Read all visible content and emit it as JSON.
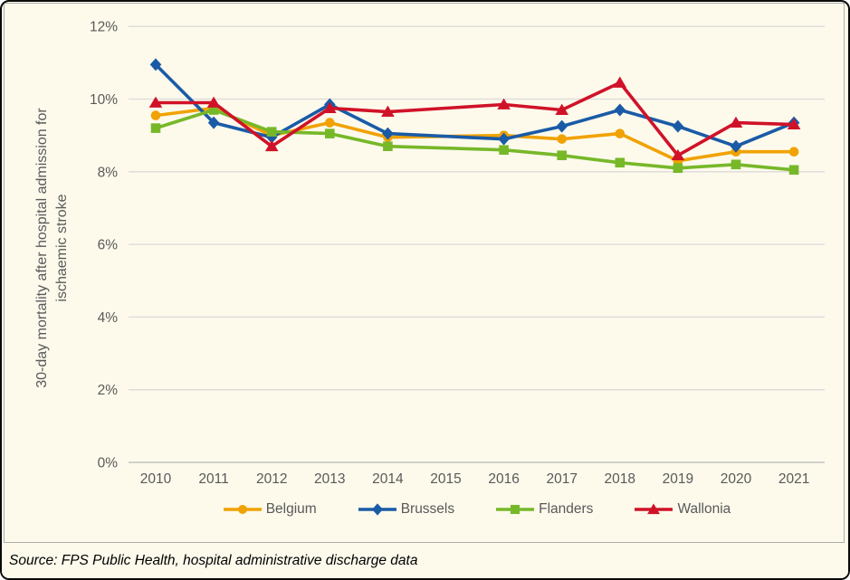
{
  "frame": {
    "background_color": "#FDFAEC",
    "outer_border_color": "#0A0A0A",
    "panel_border_color": "#ADADAD",
    "text_color": "#595959",
    "gridline_color": "#DADADA",
    "axis_line_color": "#B9B9B9"
  },
  "source": {
    "text": "Source: FPS Public Health, hospital administrative discharge data"
  },
  "chart_data": {
    "type": "line",
    "title": "",
    "ylabel": "30-day mortality after hospital admission for ischaemic stroke",
    "ylabel_line1": "30-day mortality after hospital admission for",
    "ylabel_line2": "ischaemic stroke",
    "xlabel": "",
    "categories": [
      "2010",
      "2011",
      "2012",
      "2013",
      "2014",
      "2015",
      "2016",
      "2017",
      "2018",
      "2019",
      "2020",
      "2021"
    ],
    "yticks": [
      0,
      2,
      4,
      6,
      8,
      10,
      12
    ],
    "ytick_labels": [
      "0%",
      "2%",
      "4%",
      "6%",
      "8%",
      "10%",
      "12%"
    ],
    "ylim": [
      0,
      12
    ],
    "grid": true,
    "legend_position": "bottom",
    "note": "No data markers shown for 2015; lines connect 2014 directly to 2016.",
    "series": [
      {
        "name": "Belgium",
        "color": "#F0A202",
        "marker": "circle",
        "values": [
          9.55,
          9.75,
          9.0,
          9.35,
          8.95,
          null,
          9.0,
          8.9,
          9.05,
          8.3,
          8.55,
          8.55
        ]
      },
      {
        "name": "Brussels",
        "color": "#1A5BA6",
        "marker": "diamond",
        "values": [
          10.95,
          9.35,
          8.95,
          9.85,
          9.05,
          null,
          8.9,
          9.25,
          9.7,
          9.25,
          8.7,
          9.35
        ]
      },
      {
        "name": "Flanders",
        "color": "#77B829",
        "marker": "square",
        "values": [
          9.2,
          9.7,
          9.1,
          9.05,
          8.7,
          null,
          8.6,
          8.45,
          8.25,
          8.1,
          8.2,
          8.05
        ]
      },
      {
        "name": "Wallonia",
        "color": "#D01228",
        "marker": "triangle",
        "values": [
          9.9,
          9.9,
          8.7,
          9.75,
          9.65,
          null,
          9.85,
          9.7,
          10.45,
          8.45,
          9.35,
          9.3
        ]
      }
    ]
  }
}
